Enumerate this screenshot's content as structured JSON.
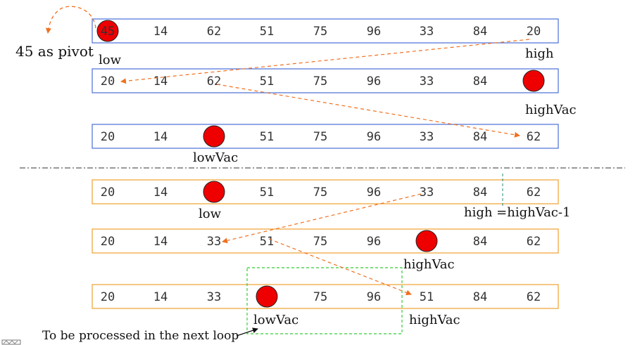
{
  "colors": {
    "top_box": "#4a6fd8",
    "bottom_box": "#f0a030",
    "circle": "#ee0000",
    "arrow": "#f07020",
    "window": "#33cc33",
    "divider": "#333333",
    "teal": "#2a8a7a"
  },
  "rows": [
    {
      "values": [
        "45",
        "14",
        "62",
        "51",
        "75",
        "96",
        "33",
        "84",
        "20"
      ],
      "circle_index": 0
    },
    {
      "values": [
        "20",
        "14",
        "62",
        "51",
        "75",
        "96",
        "33",
        "84",
        ""
      ],
      "circle_index": 8
    },
    {
      "values": [
        "20",
        "14",
        "",
        "51",
        "75",
        "96",
        "33",
        "84",
        "62"
      ],
      "circle_index": 2
    },
    {
      "values": [
        "20",
        "14",
        "",
        "51",
        "75",
        "96",
        "33",
        "84",
        "62"
      ],
      "circle_index": 2
    },
    {
      "values": [
        "20",
        "14",
        "33",
        "51",
        "75",
        "96",
        "",
        "84",
        "62"
      ],
      "circle_index": 6
    },
    {
      "values": [
        "20",
        "14",
        "33",
        "",
        "75",
        "96",
        "51",
        "84",
        "62"
      ],
      "circle_index": 3
    }
  ],
  "labels": {
    "pivot": "45 as pivot",
    "r1_low": "low",
    "r1_high": "high",
    "r2_highvac": "highVac",
    "r3_lowvac": "lowVac",
    "r4_low": "low",
    "r4_high": "high =highVac-1",
    "r5_highvac": "highVac",
    "r6_lowvac": "lowVac",
    "r6_highvac": "highVac",
    "next_loop": "To be processed in the next loop"
  }
}
